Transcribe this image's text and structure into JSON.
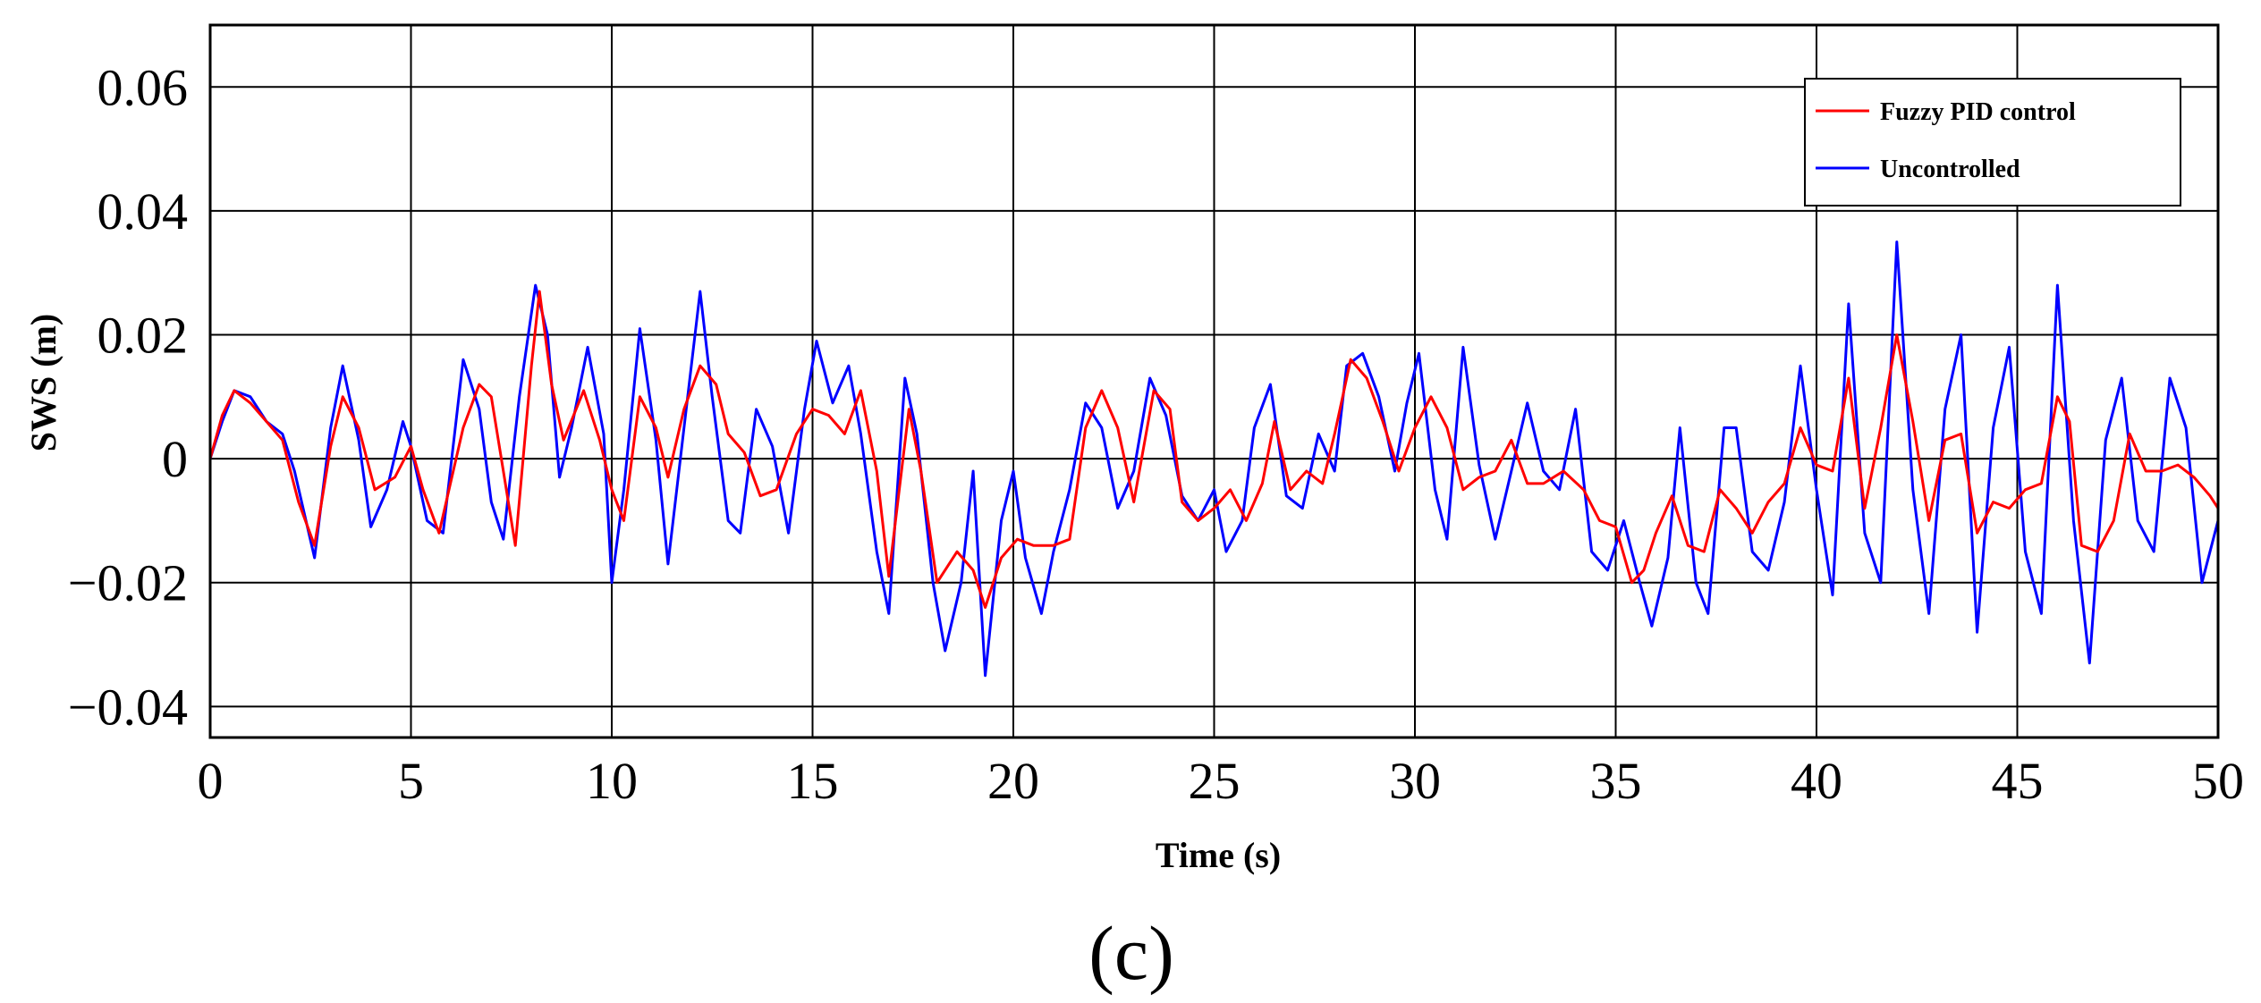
{
  "chart_data": {
    "type": "line",
    "caption": "(c)",
    "xlabel": "Time (s)",
    "ylabel": "SWS (m)",
    "xlim": [
      0,
      50
    ],
    "ylim": [
      -0.045,
      0.07
    ],
    "x_ticks": [
      0,
      5,
      10,
      15,
      20,
      25,
      30,
      35,
      40,
      45,
      50
    ],
    "x_tick_labels": [
      "0",
      "5",
      "10",
      "15",
      "20",
      "25",
      "30",
      "35",
      "40",
      "45",
      "50"
    ],
    "y_ticks": [
      0.06,
      0.04,
      0.02,
      0,
      -0.02,
      -0.04
    ],
    "y_tick_labels": [
      "0.06",
      "0.04",
      "0.02",
      "0",
      "−0.02",
      "−0.04"
    ],
    "grid": true,
    "legend_position": "top-right",
    "series": [
      {
        "name": "Fuzzy PID control",
        "color": "#ff0000",
        "points": [
          [
            0,
            0
          ],
          [
            0.3,
            0.007
          ],
          [
            0.6,
            0.011
          ],
          [
            1.0,
            0.009
          ],
          [
            1.4,
            0.006
          ],
          [
            1.8,
            0.003
          ],
          [
            2.2,
            -0.007
          ],
          [
            2.6,
            -0.014
          ],
          [
            3.0,
            0.002
          ],
          [
            3.3,
            0.01
          ],
          [
            3.7,
            0.005
          ],
          [
            4.1,
            -0.005
          ],
          [
            4.6,
            -0.003
          ],
          [
            5.0,
            0.002
          ],
          [
            5.3,
            -0.005
          ],
          [
            5.7,
            -0.012
          ],
          [
            6.3,
            0.005
          ],
          [
            6.7,
            0.012
          ],
          [
            7.0,
            0.01
          ],
          [
            7.3,
            -0.002
          ],
          [
            7.6,
            -0.014
          ],
          [
            8.0,
            0.015
          ],
          [
            8.2,
            0.027
          ],
          [
            8.5,
            0.012
          ],
          [
            8.8,
            0.003
          ],
          [
            9.3,
            0.011
          ],
          [
            9.7,
            0.003
          ],
          [
            10.0,
            -0.005
          ],
          [
            10.3,
            -0.01
          ],
          [
            10.7,
            0.01
          ],
          [
            11.1,
            0.005
          ],
          [
            11.4,
            -0.003
          ],
          [
            11.8,
            0.008
          ],
          [
            12.2,
            0.015
          ],
          [
            12.6,
            0.012
          ],
          [
            12.9,
            0.004
          ],
          [
            13.3,
            0.001
          ],
          [
            13.7,
            -0.006
          ],
          [
            14.1,
            -0.005
          ],
          [
            14.6,
            0.004
          ],
          [
            15.0,
            0.008
          ],
          [
            15.4,
            0.007
          ],
          [
            15.8,
            0.004
          ],
          [
            16.2,
            0.011
          ],
          [
            16.6,
            -0.002
          ],
          [
            16.9,
            -0.019
          ],
          [
            17.4,
            0.008
          ],
          [
            17.7,
            -0.002
          ],
          [
            18.1,
            -0.02
          ],
          [
            18.6,
            -0.015
          ],
          [
            19.0,
            -0.018
          ],
          [
            19.3,
            -0.024
          ],
          [
            19.7,
            -0.016
          ],
          [
            20.1,
            -0.013
          ],
          [
            20.5,
            -0.014
          ],
          [
            21.0,
            -0.014
          ],
          [
            21.4,
            -0.013
          ],
          [
            21.8,
            0.005
          ],
          [
            22.2,
            0.011
          ],
          [
            22.6,
            0.005
          ],
          [
            23.0,
            -0.007
          ],
          [
            23.5,
            0.011
          ],
          [
            23.9,
            0.008
          ],
          [
            24.2,
            -0.007
          ],
          [
            24.6,
            -0.01
          ],
          [
            25.0,
            -0.008
          ],
          [
            25.4,
            -0.005
          ],
          [
            25.8,
            -0.01
          ],
          [
            26.2,
            -0.004
          ],
          [
            26.5,
            0.006
          ],
          [
            26.9,
            -0.005
          ],
          [
            27.3,
            -0.002
          ],
          [
            27.7,
            -0.004
          ],
          [
            28.0,
            0.004
          ],
          [
            28.4,
            0.016
          ],
          [
            28.8,
            0.013
          ],
          [
            29.2,
            0.006
          ],
          [
            29.6,
            -0.002
          ],
          [
            30.0,
            0.005
          ],
          [
            30.4,
            0.01
          ],
          [
            30.8,
            0.005
          ],
          [
            31.2,
            -0.005
          ],
          [
            31.6,
            -0.003
          ],
          [
            32.0,
            -0.002
          ],
          [
            32.4,
            0.003
          ],
          [
            32.8,
            -0.004
          ],
          [
            33.2,
            -0.004
          ],
          [
            33.7,
            -0.002
          ],
          [
            34.2,
            -0.005
          ],
          [
            34.6,
            -0.01
          ],
          [
            35.0,
            -0.011
          ],
          [
            35.4,
            -0.02
          ],
          [
            35.7,
            -0.018
          ],
          [
            36.0,
            -0.012
          ],
          [
            36.4,
            -0.006
          ],
          [
            36.8,
            -0.014
          ],
          [
            37.2,
            -0.015
          ],
          [
            37.6,
            -0.005
          ],
          [
            38.0,
            -0.008
          ],
          [
            38.4,
            -0.012
          ],
          [
            38.8,
            -0.007
          ],
          [
            39.2,
            -0.004
          ],
          [
            39.6,
            0.005
          ],
          [
            40.0,
            -0.001
          ],
          [
            40.4,
            -0.002
          ],
          [
            40.8,
            0.013
          ],
          [
            41.2,
            -0.008
          ],
          [
            41.6,
            0.005
          ],
          [
            42.0,
            0.02
          ],
          [
            42.4,
            0.006
          ],
          [
            42.8,
            -0.01
          ],
          [
            43.2,
            0.003
          ],
          [
            43.6,
            0.004
          ],
          [
            44.0,
            -0.012
          ],
          [
            44.4,
            -0.007
          ],
          [
            44.8,
            -0.008
          ],
          [
            45.2,
            -0.005
          ],
          [
            45.6,
            -0.004
          ],
          [
            46.0,
            0.01
          ],
          [
            46.3,
            0.006
          ],
          [
            46.6,
            -0.014
          ],
          [
            47.0,
            -0.015
          ],
          [
            47.4,
            -0.01
          ],
          [
            47.8,
            0.004
          ],
          [
            48.2,
            -0.002
          ],
          [
            48.6,
            -0.002
          ],
          [
            49.0,
            -0.001
          ],
          [
            49.4,
            -0.003
          ],
          [
            49.8,
            -0.006
          ],
          [
            50.0,
            -0.008
          ]
        ]
      },
      {
        "name": "Uncontrolled",
        "color": "#0000ff",
        "points": [
          [
            0,
            0
          ],
          [
            0.3,
            0.006
          ],
          [
            0.6,
            0.011
          ],
          [
            1.0,
            0.01
          ],
          [
            1.4,
            0.006
          ],
          [
            1.8,
            0.004
          ],
          [
            2.1,
            -0.002
          ],
          [
            2.6,
            -0.016
          ],
          [
            3.0,
            0.005
          ],
          [
            3.3,
            0.015
          ],
          [
            3.7,
            0.003
          ],
          [
            4.0,
            -0.011
          ],
          [
            4.4,
            -0.005
          ],
          [
            4.8,
            0.006
          ],
          [
            5.0,
            0.002
          ],
          [
            5.4,
            -0.01
          ],
          [
            5.8,
            -0.012
          ],
          [
            6.3,
            0.016
          ],
          [
            6.7,
            0.008
          ],
          [
            7.0,
            -0.007
          ],
          [
            7.3,
            -0.013
          ],
          [
            7.7,
            0.01
          ],
          [
            8.1,
            0.028
          ],
          [
            8.4,
            0.02
          ],
          [
            8.7,
            -0.003
          ],
          [
            9.0,
            0.005
          ],
          [
            9.4,
            0.018
          ],
          [
            9.8,
            0.004
          ],
          [
            10.0,
            -0.02
          ],
          [
            10.3,
            -0.005
          ],
          [
            10.7,
            0.021
          ],
          [
            11.1,
            0.003
          ],
          [
            11.4,
            -0.017
          ],
          [
            11.8,
            0.005
          ],
          [
            12.2,
            0.027
          ],
          [
            12.5,
            0.01
          ],
          [
            12.9,
            -0.01
          ],
          [
            13.2,
            -0.012
          ],
          [
            13.6,
            0.008
          ],
          [
            14.0,
            0.002
          ],
          [
            14.4,
            -0.012
          ],
          [
            14.8,
            0.008
          ],
          [
            15.1,
            0.019
          ],
          [
            15.5,
            0.009
          ],
          [
            15.9,
            0.015
          ],
          [
            16.2,
            0.004
          ],
          [
            16.6,
            -0.015
          ],
          [
            16.9,
            -0.025
          ],
          [
            17.3,
            0.013
          ],
          [
            17.6,
            0.004
          ],
          [
            18.0,
            -0.02
          ],
          [
            18.3,
            -0.031
          ],
          [
            18.7,
            -0.02
          ],
          [
            19.0,
            -0.002
          ],
          [
            19.3,
            -0.035
          ],
          [
            19.7,
            -0.01
          ],
          [
            20.0,
            -0.002
          ],
          [
            20.3,
            -0.016
          ],
          [
            20.7,
            -0.025
          ],
          [
            21.0,
            -0.015
          ],
          [
            21.4,
            -0.005
          ],
          [
            21.8,
            0.009
          ],
          [
            22.2,
            0.005
          ],
          [
            22.6,
            -0.008
          ],
          [
            23.0,
            -0.002
          ],
          [
            23.4,
            0.013
          ],
          [
            23.8,
            0.007
          ],
          [
            24.2,
            -0.006
          ],
          [
            24.6,
            -0.01
          ],
          [
            25.0,
            -0.005
          ],
          [
            25.3,
            -0.015
          ],
          [
            25.7,
            -0.01
          ],
          [
            26.0,
            0.005
          ],
          [
            26.4,
            0.012
          ],
          [
            26.8,
            -0.006
          ],
          [
            27.2,
            -0.008
          ],
          [
            27.6,
            0.004
          ],
          [
            28.0,
            -0.002
          ],
          [
            28.3,
            0.015
          ],
          [
            28.7,
            0.017
          ],
          [
            29.1,
            0.01
          ],
          [
            29.5,
            -0.002
          ],
          [
            29.8,
            0.009
          ],
          [
            30.1,
            0.017
          ],
          [
            30.5,
            -0.005
          ],
          [
            30.8,
            -0.013
          ],
          [
            31.2,
            0.018
          ],
          [
            31.6,
            -0.001
          ],
          [
            32.0,
            -0.013
          ],
          [
            32.4,
            -0.002
          ],
          [
            32.8,
            0.009
          ],
          [
            33.2,
            -0.002
          ],
          [
            33.6,
            -0.005
          ],
          [
            34.0,
            0.008
          ],
          [
            34.4,
            -0.015
          ],
          [
            34.8,
            -0.018
          ],
          [
            35.2,
            -0.01
          ],
          [
            35.6,
            -0.02
          ],
          [
            35.9,
            -0.027
          ],
          [
            36.3,
            -0.016
          ],
          [
            36.6,
            0.005
          ],
          [
            37.0,
            -0.02
          ],
          [
            37.3,
            -0.025
          ],
          [
            37.7,
            0.005
          ],
          [
            38.0,
            0.005
          ],
          [
            38.4,
            -0.015
          ],
          [
            38.8,
            -0.018
          ],
          [
            39.2,
            -0.007
          ],
          [
            39.6,
            0.015
          ],
          [
            40.0,
            -0.005
          ],
          [
            40.4,
            -0.022
          ],
          [
            40.8,
            0.025
          ],
          [
            41.2,
            -0.012
          ],
          [
            41.6,
            -0.02
          ],
          [
            42.0,
            0.035
          ],
          [
            42.4,
            -0.005
          ],
          [
            42.8,
            -0.025
          ],
          [
            43.2,
            0.008
          ],
          [
            43.6,
            0.02
          ],
          [
            44.0,
            -0.028
          ],
          [
            44.4,
            0.005
          ],
          [
            44.8,
            0.018
          ],
          [
            45.2,
            -0.015
          ],
          [
            45.6,
            -0.025
          ],
          [
            46.0,
            0.028
          ],
          [
            46.4,
            -0.01
          ],
          [
            46.8,
            -0.033
          ],
          [
            47.2,
            0.003
          ],
          [
            47.6,
            0.013
          ],
          [
            48.0,
            -0.01
          ],
          [
            48.4,
            -0.015
          ],
          [
            48.8,
            0.013
          ],
          [
            49.2,
            0.005
          ],
          [
            49.6,
            -0.02
          ],
          [
            50.0,
            -0.01
          ]
        ]
      }
    ]
  }
}
